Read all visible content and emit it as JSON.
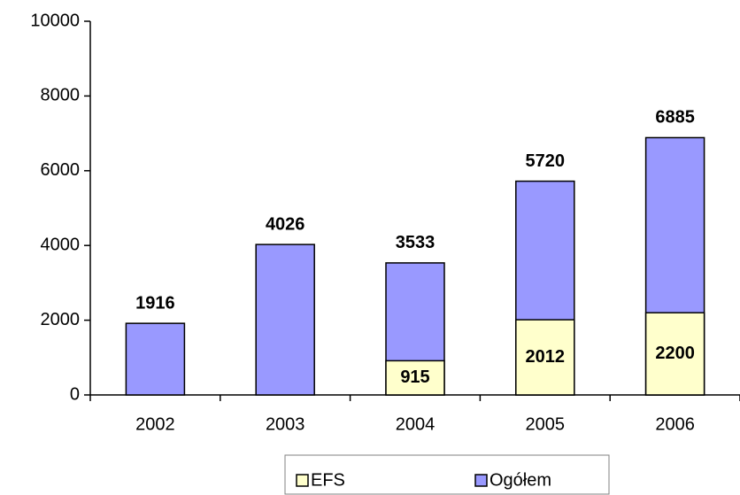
{
  "chart_data": {
    "type": "bar",
    "overlap": true,
    "categories": [
      "2002",
      "2003",
      "2004",
      "2005",
      "2006"
    ],
    "series": [
      {
        "name": "Ogółem",
        "color": "#9999ff",
        "values": [
          1916,
          4026,
          3533,
          5720,
          6885
        ]
      },
      {
        "name": "EFS",
        "color": "#ffffcc",
        "values": [
          null,
          null,
          915,
          2012,
          2200
        ]
      }
    ],
    "ylim": [
      0,
      10000
    ],
    "yticks": [
      0,
      2000,
      4000,
      6000,
      8000,
      10000
    ],
    "legend": "bottom",
    "legend_order": [
      1,
      0
    ]
  }
}
